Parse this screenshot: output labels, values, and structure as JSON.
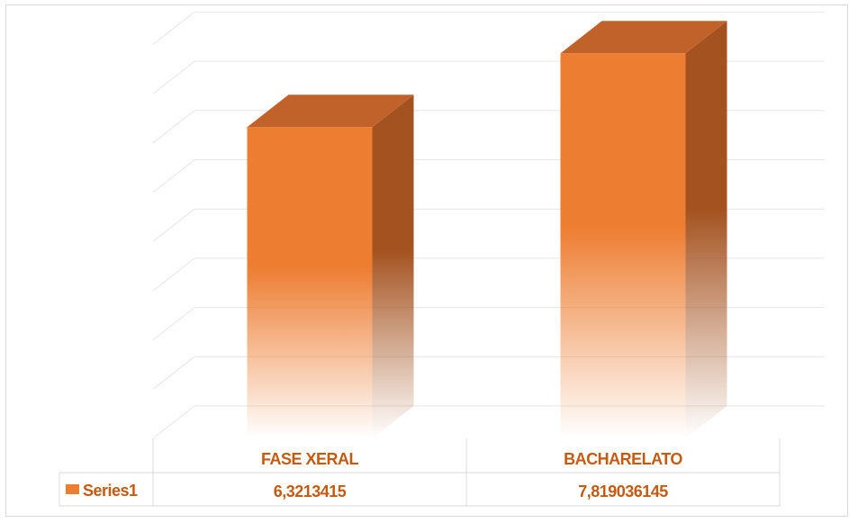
{
  "chart_data": {
    "type": "bar",
    "style": "3d-column-with-data-table",
    "categories": [
      "FASE XERAL",
      "BACHARELATO"
    ],
    "series": [
      {
        "name": "Series1",
        "values": [
          6.3213415,
          7.819036145
        ],
        "value_labels": [
          "6,3213415",
          "7,819036145"
        ],
        "color": "#ed7d31"
      }
    ],
    "ylim": [
      0,
      9
    ],
    "grid": true,
    "legend": "data-table",
    "title": "",
    "xlabel": "",
    "ylabel": ""
  },
  "colors": {
    "front": "#ed7d31",
    "top": "#c0622a",
    "side": "#a4521f",
    "text": "#c55a11",
    "grid": "#e6e6e6",
    "border": "#d9d9d9"
  }
}
